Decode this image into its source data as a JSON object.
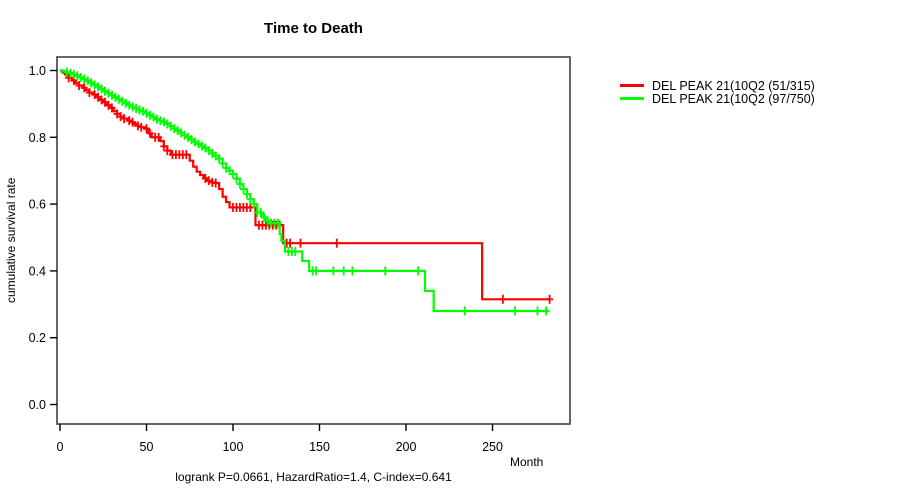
{
  "chart_data": {
    "type": "line",
    "subtype": "kaplan-meier-step-curves",
    "title": "Time to Death",
    "xlabel": "Month",
    "ylabel": "cumulative survival rate",
    "annotation": "logrank P=0.0661, HazardRatio=1.4, C-index=0.641",
    "xticks": [
      "0",
      "50",
      "100",
      "150",
      "200",
      "250"
    ],
    "yticks": [
      "0.0",
      "0.2",
      "0.4",
      "0.6",
      "0.8",
      "1.0"
    ],
    "xlim": [
      0,
      295
    ],
    "ylim": [
      0,
      1.04
    ],
    "grid": false,
    "legend_position": "right-outside",
    "series": [
      {
        "name": "DEL PEAK 21(10Q2 (51/315)",
        "color": "#ff0000",
        "steps": [
          [
            0,
            1.0
          ],
          [
            1,
            0.997
          ],
          [
            2,
            0.993
          ],
          [
            3,
            0.988
          ],
          [
            4,
            0.983
          ],
          [
            5,
            0.978
          ],
          [
            7,
            0.97
          ],
          [
            9,
            0.962
          ],
          [
            11,
            0.955
          ],
          [
            13,
            0.948
          ],
          [
            15,
            0.941
          ],
          [
            17,
            0.934
          ],
          [
            19,
            0.928
          ],
          [
            21,
            0.92
          ],
          [
            23,
            0.912
          ],
          [
            25,
            0.905
          ],
          [
            27,
            0.896
          ],
          [
            29,
            0.888
          ],
          [
            31,
            0.878
          ],
          [
            33,
            0.87
          ],
          [
            35,
            0.862
          ],
          [
            37,
            0.856
          ],
          [
            39,
            0.85
          ],
          [
            41,
            0.845
          ],
          [
            43,
            0.84
          ],
          [
            45,
            0.834
          ],
          [
            47,
            0.83
          ],
          [
            49,
            0.826
          ],
          [
            51,
            0.812
          ],
          [
            53,
            0.8
          ],
          [
            58,
            0.789
          ],
          [
            60,
            0.773
          ],
          [
            62,
            0.76
          ],
          [
            64,
            0.748
          ],
          [
            75,
            0.73
          ],
          [
            77,
            0.712
          ],
          [
            79,
            0.697
          ],
          [
            81,
            0.687
          ],
          [
            83,
            0.677
          ],
          [
            85,
            0.67
          ],
          [
            88,
            0.665
          ],
          [
            90,
            0.663
          ],
          [
            92,
            0.645
          ],
          [
            94,
            0.622
          ],
          [
            96,
            0.606
          ],
          [
            98,
            0.59
          ],
          [
            113,
            0.537
          ],
          [
            129,
            0.483
          ],
          [
            244,
            0.315
          ],
          [
            283,
            0.315
          ]
        ],
        "censor_times": [
          5,
          8,
          11,
          14,
          17,
          20,
          22,
          24,
          26,
          28,
          30,
          33,
          35,
          37,
          40,
          42,
          45,
          47,
          50,
          52,
          55,
          57,
          60,
          62,
          65,
          67,
          69,
          71,
          73,
          84,
          86,
          88,
          90,
          100,
          102,
          104,
          106,
          108,
          110,
          115,
          117,
          119,
          121,
          123,
          125,
          127,
          131,
          133,
          139,
          160,
          256,
          283
        ]
      },
      {
        "name": "DEL PEAK 21(10Q2 (97/750)",
        "color": "#00ff00",
        "steps": [
          [
            0,
            1.0
          ],
          [
            2,
            0.998
          ],
          [
            4,
            0.995
          ],
          [
            6,
            0.992
          ],
          [
            8,
            0.988
          ],
          [
            10,
            0.984
          ],
          [
            12,
            0.979
          ],
          [
            14,
            0.974
          ],
          [
            16,
            0.969
          ],
          [
            18,
            0.963
          ],
          [
            20,
            0.957
          ],
          [
            22,
            0.951
          ],
          [
            24,
            0.945
          ],
          [
            26,
            0.938
          ],
          [
            28,
            0.932
          ],
          [
            30,
            0.926
          ],
          [
            32,
            0.92
          ],
          [
            34,
            0.914
          ],
          [
            36,
            0.908
          ],
          [
            38,
            0.902
          ],
          [
            40,
            0.896
          ],
          [
            42,
            0.891
          ],
          [
            44,
            0.886
          ],
          [
            46,
            0.882
          ],
          [
            48,
            0.878
          ],
          [
            50,
            0.872
          ],
          [
            52,
            0.866
          ],
          [
            54,
            0.86
          ],
          [
            56,
            0.854
          ],
          [
            58,
            0.85
          ],
          [
            60,
            0.846
          ],
          [
            62,
            0.84
          ],
          [
            64,
            0.833
          ],
          [
            66,
            0.826
          ],
          [
            68,
            0.82
          ],
          [
            70,
            0.813
          ],
          [
            72,
            0.806
          ],
          [
            74,
            0.8
          ],
          [
            76,
            0.793
          ],
          [
            78,
            0.786
          ],
          [
            80,
            0.78
          ],
          [
            82,
            0.774
          ],
          [
            84,
            0.768
          ],
          [
            86,
            0.76
          ],
          [
            88,
            0.752
          ],
          [
            90,
            0.744
          ],
          [
            92,
            0.736
          ],
          [
            94,
            0.722
          ],
          [
            96,
            0.708
          ],
          [
            98,
            0.7
          ],
          [
            100,
            0.69
          ],
          [
            102,
            0.676
          ],
          [
            104,
            0.66
          ],
          [
            106,
            0.645
          ],
          [
            108,
            0.63
          ],
          [
            110,
            0.615
          ],
          [
            112,
            0.6
          ],
          [
            114,
            0.575
          ],
          [
            117,
            0.56
          ],
          [
            119,
            0.55
          ],
          [
            121,
            0.543
          ],
          [
            127,
            0.51
          ],
          [
            128,
            0.49
          ],
          [
            130,
            0.458
          ],
          [
            140,
            0.43
          ],
          [
            144,
            0.4
          ],
          [
            211,
            0.34
          ],
          [
            216,
            0.28
          ],
          [
            283,
            0.28
          ]
        ],
        "censor_times": [
          4,
          6,
          8,
          10,
          12,
          14,
          16,
          18,
          20,
          22,
          24,
          26,
          28,
          30,
          32,
          34,
          36,
          38,
          40,
          42,
          44,
          46,
          48,
          50,
          52,
          54,
          56,
          58,
          60,
          62,
          64,
          66,
          68,
          70,
          72,
          74,
          76,
          78,
          80,
          82,
          84,
          86,
          88,
          90,
          92,
          94,
          96,
          98,
          100,
          102,
          104,
          106,
          108,
          110,
          112,
          114,
          116,
          118,
          120,
          122,
          124,
          126,
          132,
          134,
          136,
          146,
          148,
          158,
          164,
          169,
          188,
          207,
          234,
          263,
          276,
          281
        ]
      }
    ]
  }
}
